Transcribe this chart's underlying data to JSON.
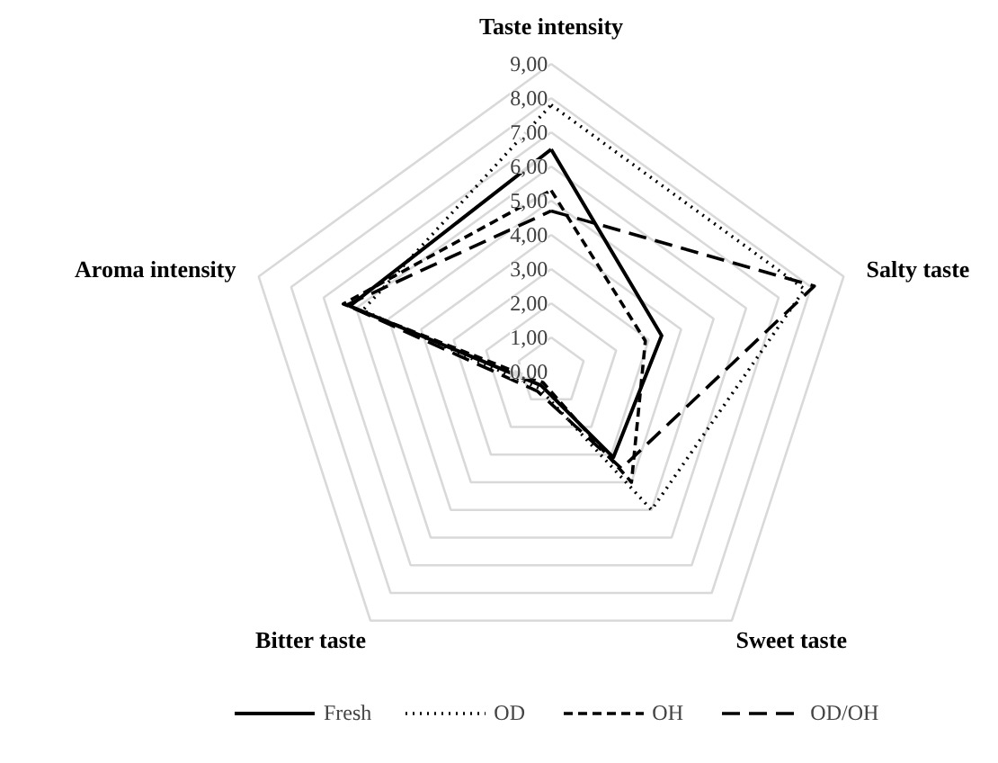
{
  "chart_data": {
    "type": "radar",
    "categories": [
      "Taste intensity",
      "Salty taste",
      "Sweet taste",
      "Bitter taste",
      "Aroma intensity"
    ],
    "ylim": [
      0,
      9
    ],
    "yticks": [
      {
        "value": 0,
        "label": "0,00"
      },
      {
        "value": 1,
        "label": "1,00"
      },
      {
        "value": 2,
        "label": "2,00"
      },
      {
        "value": 3,
        "label": "3,00"
      },
      {
        "value": 4,
        "label": "4,00"
      },
      {
        "value": 5,
        "label": "5,00"
      },
      {
        "value": 6,
        "label": "6,00"
      },
      {
        "value": 7,
        "label": "7,00"
      },
      {
        "value": 8,
        "label": "8,00"
      },
      {
        "value": 9,
        "label": "9,00"
      }
    ],
    "grid": true,
    "legend": "bottom",
    "marker": "none",
    "series": [
      {
        "name": "Fresh",
        "color": "#000000",
        "line_style": "solid",
        "values": [
          6.5,
          3.4,
          3.1,
          0.5,
          6.2
        ]
      },
      {
        "name": "OD",
        "color": "#000000",
        "line_style": "dotted",
        "values": [
          7.8,
          7.8,
          5.0,
          0.6,
          5.8
        ]
      },
      {
        "name": "OH",
        "color": "#000000",
        "line_style": "dashed",
        "values": [
          5.3,
          2.9,
          4.0,
          0.4,
          6.4
        ]
      },
      {
        "name": "OD/OH",
        "color": "#000000",
        "line_style": "longdashed",
        "values": [
          4.7,
          8.1,
          3.5,
          0.7,
          6.3
        ]
      }
    ]
  }
}
